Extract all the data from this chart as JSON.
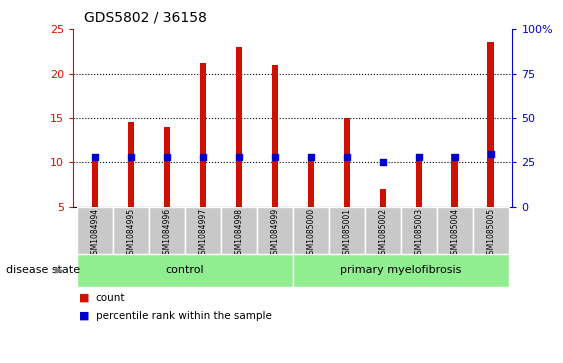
{
  "title": "GDS5802 / 36158",
  "samples": [
    "GSM1084994",
    "GSM1084995",
    "GSM1084996",
    "GSM1084997",
    "GSM1084998",
    "GSM1084999",
    "GSM1085000",
    "GSM1085001",
    "GSM1085002",
    "GSM1085003",
    "GSM1085004",
    "GSM1085005"
  ],
  "counts": [
    11.0,
    14.5,
    14.0,
    21.2,
    23.0,
    21.0,
    11.0,
    15.0,
    7.0,
    10.6,
    11.0,
    23.5
  ],
  "percentiles": [
    28,
    28,
    28,
    28,
    28,
    28,
    28,
    28,
    25,
    28,
    28,
    30
  ],
  "ymin": 5,
  "ymax": 25,
  "yright_min": 0,
  "yright_max": 100,
  "yticks_left": [
    5,
    10,
    15,
    20,
    25
  ],
  "yticks_right": [
    0,
    25,
    50,
    75,
    100
  ],
  "bar_color": "#cc1100",
  "percentile_color": "#0000cc",
  "control_label": "control",
  "disease_label": "primary myelofibrosis",
  "n_control": 6,
  "n_disease": 6,
  "legend_count": "count",
  "legend_percentile": "percentile rank within the sample",
  "disease_state_label": "disease state",
  "group_bg_color": "#90ee90",
  "tick_bg_color": "#c8c8c8",
  "bar_width": 0.18,
  "grid_ticks": [
    10,
    15,
    20
  ],
  "figsize": [
    5.63,
    3.63
  ],
  "dpi": 100
}
